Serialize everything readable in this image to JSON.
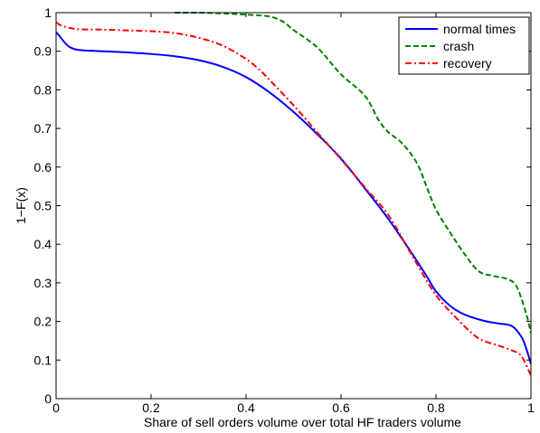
{
  "chart_data": {
    "type": "line",
    "title": "",
    "xlabel": "Share of sell orders volume over total HF traders volume",
    "ylabel": "1−F(x)",
    "xlim": [
      0,
      1
    ],
    "ylim": [
      0,
      1
    ],
    "x_ticks": [
      "0",
      "0.2",
      "0.4",
      "0.6",
      "0.8",
      "1"
    ],
    "y_ticks": [
      "0",
      "0.1",
      "0.2",
      "0.3",
      "0.4",
      "0.5",
      "0.6",
      "0.7",
      "0.8",
      "0.9",
      "1"
    ],
    "grid": false,
    "legend_position": "top-right",
    "series": [
      {
        "name": "normal times",
        "color": "#0000ff",
        "dash": "solid",
        "points": [
          [
            0,
            0.95
          ],
          [
            0.01,
            0.935
          ],
          [
            0.02,
            0.92
          ],
          [
            0.03,
            0.91
          ],
          [
            0.05,
            0.903
          ],
          [
            0.1,
            0.9
          ],
          [
            0.15,
            0.897
          ],
          [
            0.2,
            0.893
          ],
          [
            0.25,
            0.887
          ],
          [
            0.3,
            0.877
          ],
          [
            0.35,
            0.86
          ],
          [
            0.4,
            0.833
          ],
          [
            0.45,
            0.793
          ],
          [
            0.5,
            0.743
          ],
          [
            0.55,
            0.685
          ],
          [
            0.6,
            0.622
          ],
          [
            0.65,
            0.545
          ],
          [
            0.7,
            0.465
          ],
          [
            0.75,
            0.375
          ],
          [
            0.78,
            0.318
          ],
          [
            0.8,
            0.278
          ],
          [
            0.83,
            0.24
          ],
          [
            0.86,
            0.218
          ],
          [
            0.9,
            0.202
          ],
          [
            0.93,
            0.195
          ],
          [
            0.96,
            0.188
          ],
          [
            0.98,
            0.16
          ],
          [
            0.99,
            0.13
          ],
          [
            1.0,
            0.09
          ]
        ]
      },
      {
        "name": "crash",
        "color": "#008000",
        "dash": "dashed",
        "points": [
          [
            0.25,
            1.0
          ],
          [
            0.3,
            1.0
          ],
          [
            0.35,
            0.998
          ],
          [
            0.4,
            0.995
          ],
          [
            0.45,
            0.99
          ],
          [
            0.48,
            0.975
          ],
          [
            0.5,
            0.955
          ],
          [
            0.55,
            0.91
          ],
          [
            0.6,
            0.84
          ],
          [
            0.65,
            0.785
          ],
          [
            0.68,
            0.72
          ],
          [
            0.7,
            0.69
          ],
          [
            0.73,
            0.66
          ],
          [
            0.76,
            0.61
          ],
          [
            0.78,
            0.55
          ],
          [
            0.8,
            0.49
          ],
          [
            0.83,
            0.43
          ],
          [
            0.86,
            0.375
          ],
          [
            0.89,
            0.33
          ],
          [
            0.92,
            0.318
          ],
          [
            0.95,
            0.31
          ],
          [
            0.97,
            0.29
          ],
          [
            0.99,
            0.22
          ],
          [
            1.0,
            0.17
          ]
        ]
      },
      {
        "name": "recovery",
        "color": "#ff0000",
        "dash": "dashdot",
        "points": [
          [
            0,
            0.975
          ],
          [
            0.01,
            0.967
          ],
          [
            0.03,
            0.96
          ],
          [
            0.05,
            0.957
          ],
          [
            0.1,
            0.956
          ],
          [
            0.15,
            0.954
          ],
          [
            0.2,
            0.952
          ],
          [
            0.25,
            0.947
          ],
          [
            0.3,
            0.935
          ],
          [
            0.35,
            0.915
          ],
          [
            0.4,
            0.88
          ],
          [
            0.43,
            0.85
          ],
          [
            0.45,
            0.825
          ],
          [
            0.5,
            0.76
          ],
          [
            0.55,
            0.69
          ],
          [
            0.6,
            0.62
          ],
          [
            0.65,
            0.548
          ],
          [
            0.7,
            0.475
          ],
          [
            0.75,
            0.37
          ],
          [
            0.8,
            0.268
          ],
          [
            0.85,
            0.2
          ],
          [
            0.88,
            0.165
          ],
          [
            0.9,
            0.15
          ],
          [
            0.93,
            0.138
          ],
          [
            0.96,
            0.125
          ],
          [
            0.98,
            0.11
          ],
          [
            1.0,
            0.06
          ]
        ]
      }
    ]
  }
}
